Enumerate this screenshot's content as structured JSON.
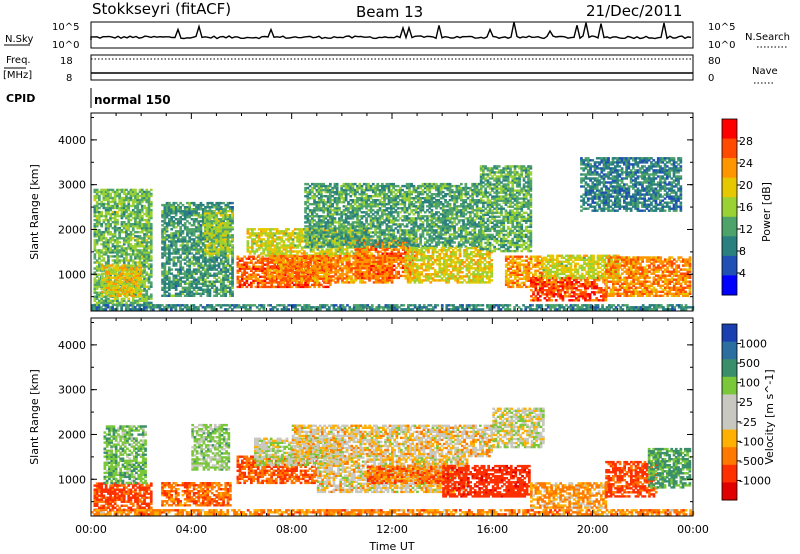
{
  "header": {
    "station": "Stokkseyri (fitACF)",
    "beam": "Beam 13",
    "date": "21/Dec/2011"
  },
  "strips": {
    "nsky_label": "N.Sky",
    "nsky_ticks": [
      "10^5",
      "10^0"
    ],
    "nsearch_label": "N.Search",
    "nsearch_ticks": [
      "10^5",
      "10^0"
    ],
    "freq_label_1": "Freq.",
    "freq_label_2": "[MHz]",
    "freq_ticks": [
      "18",
      "8"
    ],
    "nave_label": "Nave",
    "nave_ticks": [
      "80",
      "0"
    ],
    "cpid_label": "CPID",
    "cpid_value": "normal 150"
  },
  "chart_data": [
    {
      "type": "heatmap",
      "name": "Power",
      "xlabel": "Time UT",
      "ylabel": "Slant Range [km]",
      "x_ticks": [
        "00:00",
        "04:00",
        "08:00",
        "12:00",
        "16:00",
        "20:00",
        "00:00"
      ],
      "y_ticks": [
        1000,
        2000,
        3000,
        4000
      ],
      "xlim_hours": [
        0,
        24
      ],
      "ylim_km": [
        180,
        4600
      ],
      "colorbar_label": "Power [dB]",
      "colorbar_ticks": [
        "28",
        "24",
        "20",
        "16",
        "12",
        "8",
        "4"
      ],
      "colorbar_colors": [
        "#ff0000",
        "#ff4a00",
        "#ff9600",
        "#e6c800",
        "#9ad234",
        "#4ea36a",
        "#2a7f7f",
        "#1f50b4",
        "#0000ff"
      ],
      "regions": [
        {
          "t0": 0.1,
          "t1": 2.4,
          "r0": 300,
          "r1": 2900,
          "v": 14
        },
        {
          "t0": 0.4,
          "t1": 2.0,
          "r0": 500,
          "r1": 1200,
          "v": 20
        },
        {
          "t0": 2.8,
          "t1": 5.6,
          "r0": 500,
          "r1": 2600,
          "v": 11
        },
        {
          "t0": 4.5,
          "t1": 5.6,
          "r0": 1400,
          "r1": 2400,
          "v": 16
        },
        {
          "t0": 5.8,
          "t1": 9.5,
          "r0": 700,
          "r1": 1400,
          "v": 26
        },
        {
          "t0": 6.2,
          "t1": 11.0,
          "r0": 1400,
          "r1": 2000,
          "v": 18
        },
        {
          "t0": 7.0,
          "t1": 12.0,
          "r0": 800,
          "r1": 1400,
          "v": 24
        },
        {
          "t0": 10.5,
          "t1": 13.0,
          "r0": 900,
          "r1": 1800,
          "v": 25
        },
        {
          "t0": 8.5,
          "t1": 15.5,
          "r0": 1600,
          "r1": 3000,
          "v": 12
        },
        {
          "t0": 12.5,
          "t1": 16.0,
          "r0": 800,
          "r1": 1600,
          "v": 19
        },
        {
          "t0": 15.5,
          "t1": 17.5,
          "r0": 1500,
          "r1": 3400,
          "v": 13
        },
        {
          "t0": 16.5,
          "t1": 18.0,
          "r0": 700,
          "r1": 1400,
          "v": 23
        },
        {
          "t0": 17.5,
          "t1": 20.5,
          "r0": 400,
          "r1": 900,
          "v": 27
        },
        {
          "t0": 18.0,
          "t1": 21.0,
          "r0": 900,
          "r1": 1400,
          "v": 18
        },
        {
          "t0": 20.5,
          "t1": 23.9,
          "r0": 500,
          "r1": 1400,
          "v": 24
        },
        {
          "t0": 19.5,
          "t1": 23.5,
          "r0": 2400,
          "r1": 3600,
          "v": 9
        },
        {
          "t0": 0.0,
          "t1": 24.0,
          "r0": 200,
          "r1": 320,
          "v": 10
        }
      ]
    },
    {
      "type": "heatmap",
      "name": "Velocity",
      "xlabel": "Time UT",
      "ylabel": "Slant Range [km]",
      "x_ticks": [
        "00:00",
        "04:00",
        "08:00",
        "12:00",
        "16:00",
        "20:00",
        "00:00"
      ],
      "y_ticks": [
        1000,
        2000,
        3000,
        4000
      ],
      "xlim_hours": [
        0,
        24
      ],
      "ylim_km": [
        180,
        4600
      ],
      "colorbar_label": "Velocity [m s^-1]",
      "colorbar_ticks": [
        "1000",
        "500",
        "100",
        "25",
        "-25",
        "-100",
        "-500",
        "-1000"
      ],
      "colorbar_colors": [
        "#1a3fb0",
        "#2a6fa0",
        "#3a8f6a",
        "#7ac83a",
        "#c8c8c0",
        "#c8c8c0",
        "#ffb000",
        "#ff7800",
        "#ff3000",
        "#e00000"
      ],
      "regions": [
        {
          "t0": 0.1,
          "t1": 2.4,
          "r0": 300,
          "r1": 900,
          "v": -300
        },
        {
          "t0": 0.5,
          "t1": 2.2,
          "r0": 900,
          "r1": 2200,
          "v": 200
        },
        {
          "t0": 2.8,
          "t1": 5.5,
          "r0": 400,
          "r1": 900,
          "v": -200
        },
        {
          "t0": 4.0,
          "t1": 5.5,
          "r0": 1200,
          "r1": 2200,
          "v": 150
        },
        {
          "t0": 5.8,
          "t1": 9.0,
          "r0": 900,
          "r1": 1500,
          "v": -250
        },
        {
          "t0": 6.5,
          "t1": 10.0,
          "r0": 1300,
          "r1": 1900,
          "v": 60
        },
        {
          "t0": 9.0,
          "t1": 15.0,
          "r0": 700,
          "r1": 1500,
          "v": 0
        },
        {
          "t0": 8.0,
          "t1": 16.0,
          "r0": 1500,
          "r1": 2200,
          "v": -10
        },
        {
          "t0": 11.0,
          "t1": 14.0,
          "r0": 900,
          "r1": 1300,
          "v": -200
        },
        {
          "t0": 14.0,
          "t1": 17.5,
          "r0": 600,
          "r1": 1300,
          "v": -400
        },
        {
          "t0": 17.5,
          "t1": 20.5,
          "r0": 350,
          "r1": 900,
          "v": -120
        },
        {
          "t0": 20.5,
          "t1": 22.5,
          "r0": 600,
          "r1": 1400,
          "v": -300
        },
        {
          "t0": 22.2,
          "t1": 23.9,
          "r0": 800,
          "r1": 1700,
          "v": 300
        },
        {
          "t0": 16.0,
          "t1": 18.0,
          "r0": 1700,
          "r1": 2600,
          "v": 40
        },
        {
          "t0": 0.0,
          "t1": 24.0,
          "r0": 200,
          "r1": 320,
          "v": -150
        }
      ]
    }
  ]
}
